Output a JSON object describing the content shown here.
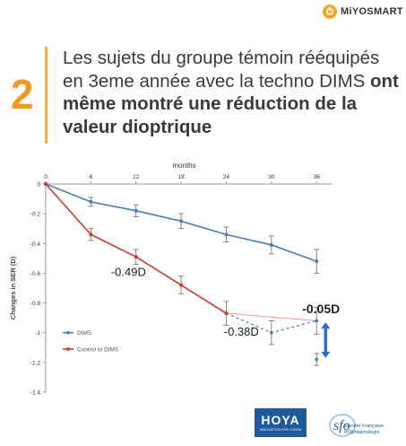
{
  "brand": {
    "name": "MiYOSMART",
    "icon": "miyosmart-logo-icon",
    "color": "#f5a623"
  },
  "slide_number": "2",
  "headline": {
    "normal": "Les sujets du groupe témoin rééquipés en 3eme année avec la techno DIMS ",
    "bold": "ont même montré une réduction de la valeur dioptrique"
  },
  "logos": {
    "hoya": {
      "main": "HOYA",
      "tagline": "INNOVATION FOR VISION"
    },
    "sfo": {
      "line1": "Société Française",
      "line2": "d'Ophtalmologie"
    }
  },
  "chart_data": {
    "type": "line",
    "title": "months",
    "xlabel": "months",
    "ylabel": "Changes in SER (D)",
    "x_ticks": [
      "0",
      "6",
      "12",
      "18",
      "24",
      "30",
      "36"
    ],
    "y_ticks": [
      "0",
      "-0.2",
      "-0.4",
      "-0.6",
      "-0.8",
      "-1",
      "-1.2",
      "-1.4"
    ],
    "xlim": [
      0,
      38
    ],
    "ylim": [
      -1.4,
      0
    ],
    "grid": false,
    "legend_position": "bottom-left",
    "series": [
      {
        "name": "DIMS",
        "color": "#4a7fb5",
        "x": [
          0,
          6,
          12,
          18,
          24,
          30,
          36
        ],
        "y": [
          0,
          -0.12,
          -0.18,
          -0.25,
          -0.34,
          -0.41,
          -0.52
        ],
        "err": [
          0,
          0.03,
          0.04,
          0.05,
          0.05,
          0.06,
          0.08
        ]
      },
      {
        "name": "Control to DIMS",
        "color": "#d0392b",
        "x": [
          0,
          6,
          12,
          18,
          24
        ],
        "y": [
          0,
          -0.34,
          -0.49,
          -0.68,
          -0.87
        ],
        "err": [
          0,
          0.04,
          0.05,
          0.06,
          0.08
        ]
      }
    ],
    "extension": {
      "from": [
        24,
        -0.87
      ],
      "dashed_via": [
        30,
        -1.0
      ],
      "to": [
        36,
        -0.92
      ],
      "dashed_color": "#4a7fb5",
      "solid_color": "#f0a8a8",
      "err_30": 0.08,
      "err_36": 0.09
    },
    "green_point": {
      "x": 36,
      "y": -1.18,
      "err": 0.04,
      "color": "#4aa04a"
    },
    "annotations": [
      {
        "text": "-0.49D",
        "x": 11,
        "y": -0.62,
        "bold": false
      },
      {
        "text": "-0.38D",
        "x": 26,
        "y": -1.02,
        "bold": false
      },
      {
        "text": "-0.05D",
        "x": 36.6,
        "y": -0.87,
        "bold": true
      }
    ],
    "double_arrow": {
      "x": 37.2,
      "y_top": -0.93,
      "y_bottom": -1.17,
      "color": "#2a6fc9"
    }
  }
}
